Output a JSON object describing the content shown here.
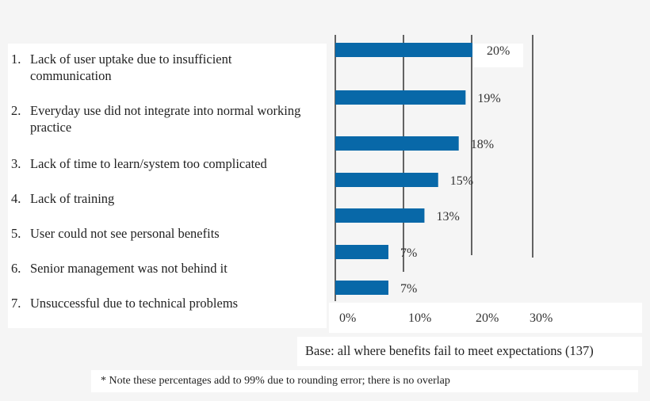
{
  "chart_data": {
    "type": "bar",
    "orientation": "horizontal",
    "categories": [
      {
        "num": "1.",
        "label": "Lack of user uptake due to insufficient communication"
      },
      {
        "num": "2.",
        "label": "Everyday use did not integrate into normal working practice"
      },
      {
        "num": "3.",
        "label": "Lack of time to learn/system too complicated"
      },
      {
        "num": "4.",
        "label": "Lack of training"
      },
      {
        "num": "5.",
        "label": "User could not see personal benefits"
      },
      {
        "num": "6.",
        "label": "Senior management was not behind it"
      },
      {
        "num": "7.",
        "label": "Unsuccessful due to technical problems"
      }
    ],
    "values": [
      20,
      19,
      18,
      15,
      13,
      7,
      7
    ],
    "data_labels": [
      "20%",
      "19%",
      "18%",
      "15%",
      "13%",
      "7%",
      "7%"
    ],
    "xlim": [
      0,
      30
    ],
    "x_ticks": [
      "0%",
      "10%",
      "20%",
      "30%"
    ],
    "grid": true,
    "bar_color": "#0868a8",
    "base_text": "Base: all where benefits fail to meet expectations (137)",
    "note": "* Note these percentages add to 99% due to rounding error; there is no overlap"
  }
}
